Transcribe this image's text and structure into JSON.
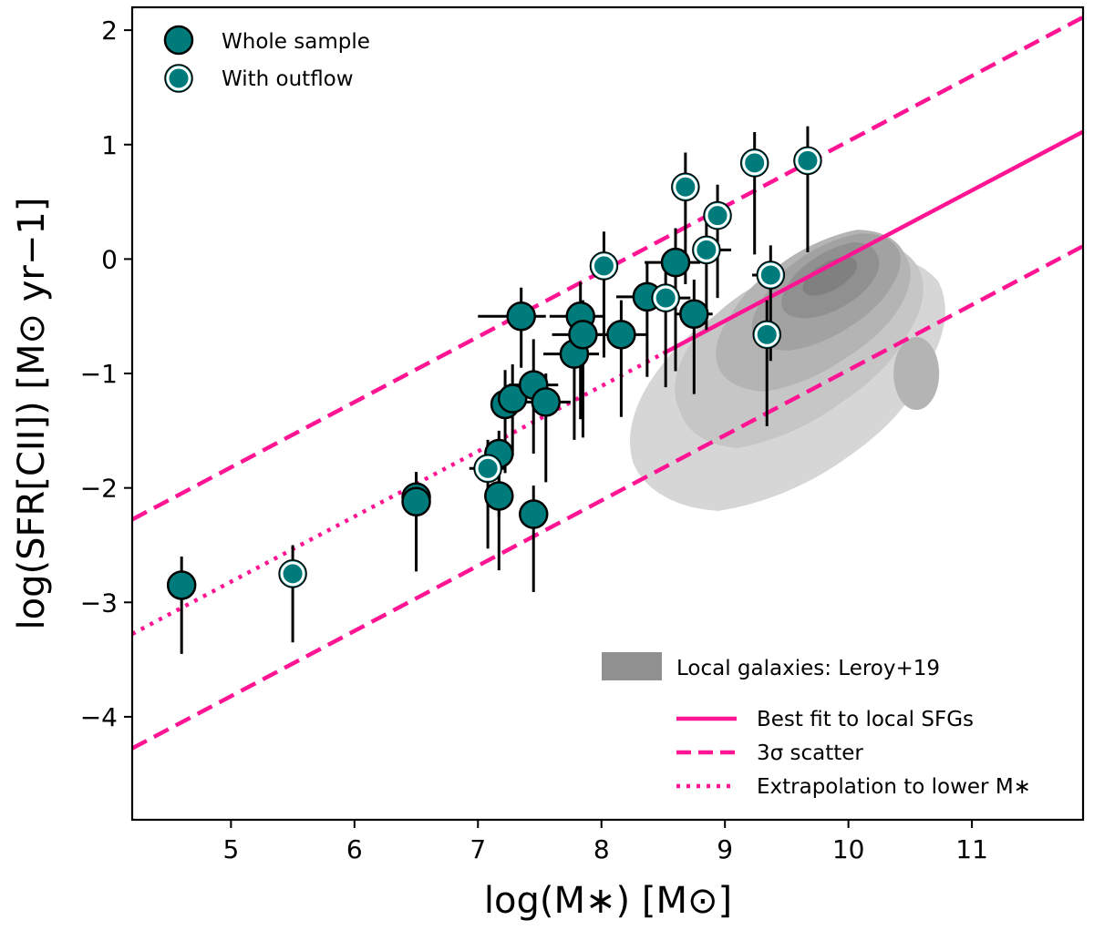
{
  "chart_data": {
    "type": "scatter",
    "xlabel": "log(M∗) [M⊙]",
    "ylabel": "log(SFR[CII]) [M⊙ yr−1]",
    "xlim": [
      4.2,
      11.9
    ],
    "ylim": [
      -4.9,
      2.2
    ],
    "xticks": [
      5,
      6,
      7,
      8,
      9,
      10,
      11
    ],
    "xtick_labels": [
      "5",
      "6",
      "7",
      "8",
      "9",
      "10",
      "11"
    ],
    "yticks": [
      2,
      1,
      0,
      -1,
      -2,
      -3,
      -4
    ],
    "ytick_labels": [
      "2",
      "1",
      "0",
      "−1",
      "−2",
      "−3",
      "−4"
    ],
    "colors": {
      "point": "#007b7b",
      "line": "#ff1493",
      "contour": [
        "#d6d6d6",
        "#c6c6c6",
        "#b4b4b4",
        "#a2a2a2",
        "#909090",
        "#808080"
      ]
    },
    "relation": {
      "name": "Best fit to local SFGs",
      "slope": 0.57,
      "intercept": -5.67,
      "fit_range": [
        8.5,
        11.9
      ],
      "extrapolation_range": [
        4.2,
        8.5
      ],
      "scatter_offset": 1.0
    },
    "series": [
      {
        "name": "Whole sample",
        "outflow": false,
        "points": [
          {
            "x": 4.6,
            "y": -2.85,
            "yerr_lo": 0.6,
            "yerr_hi": 0.25
          },
          {
            "x": 6.5,
            "y": -2.08,
            "yerr_lo": 0.65,
            "yerr_hi": 0.22
          },
          {
            "x": 6.5,
            "y": -2.12,
            "yerr_lo": 0.55,
            "yerr_hi": 0.25
          },
          {
            "x": 7.17,
            "y": -1.7,
            "yerr_lo": 0.55,
            "yerr_hi": 0.2
          },
          {
            "x": 7.17,
            "y": -2.07,
            "yerr_lo": 0.65,
            "yerr_hi": 0.22
          },
          {
            "x": 7.22,
            "y": -1.27,
            "yerr_lo": 0.6,
            "yerr_hi": 0.3
          },
          {
            "x": 7.28,
            "y": -1.22,
            "yerr_lo": 0.5,
            "yerr_hi": 0.3
          },
          {
            "x": 7.35,
            "y": -0.5,
            "xerr_lo": 0.35,
            "xerr_hi": 0.2,
            "yerr_lo": 0.45,
            "yerr_hi": 0.25
          },
          {
            "x": 7.45,
            "y": -2.23,
            "yerr_lo": 0.68,
            "yerr_hi": 0.25
          },
          {
            "x": 7.45,
            "y": -1.1,
            "xerr_lo": 0.2,
            "xerr_hi": 0.2,
            "yerr_lo": 0.6,
            "yerr_hi": 0.4
          },
          {
            "x": 7.55,
            "y": -1.25,
            "xerr_lo": 0.2,
            "xerr_hi": 0.2,
            "yerr_lo": 0.7,
            "yerr_hi": 0.25
          },
          {
            "x": 7.78,
            "y": -0.83,
            "xerr_lo": 0.25,
            "xerr_hi": 0.2,
            "yerr_lo": 0.75,
            "yerr_hi": 0.35
          },
          {
            "x": 7.83,
            "y": -0.5,
            "xerr_lo": 0.25,
            "xerr_hi": 0.2,
            "yerr_lo": 0.9,
            "yerr_hi": 0.3
          },
          {
            "x": 7.85,
            "y": -0.66,
            "xerr_lo": 0.25,
            "xerr_hi": 0.25,
            "yerr_lo": 0.9,
            "yerr_hi": 0.3
          },
          {
            "x": 8.16,
            "y": -0.66,
            "xerr_lo": 0.2,
            "xerr_hi": 0.2,
            "yerr_lo": 0.72,
            "yerr_hi": 0.3
          },
          {
            "x": 8.37,
            "y": -0.33,
            "xerr_lo": 0.25,
            "xerr_hi": 0.2,
            "yerr_lo": 0.7,
            "yerr_hi": 0.3
          },
          {
            "x": 8.6,
            "y": -0.03,
            "xerr_lo": 0.25,
            "xerr_hi": 0.2,
            "yerr_lo": 0.95,
            "yerr_hi": 0.3
          },
          {
            "x": 8.75,
            "y": -0.48,
            "xerr_lo": 0.15,
            "xerr_hi": 0.15,
            "yerr_lo": 0.7,
            "yerr_hi": 0.3
          }
        ]
      },
      {
        "name": "With outflow",
        "outflow": true,
        "points": [
          {
            "x": 5.5,
            "y": -2.75,
            "yerr_lo": 0.6,
            "yerr_hi": 0.25
          },
          {
            "x": 7.08,
            "y": -1.83,
            "xerr_lo": 0.15,
            "xerr_hi": 0.15,
            "yerr_lo": 0.7,
            "yerr_hi": 0.25
          },
          {
            "x": 8.02,
            "y": -0.06,
            "yerr_lo": 0.8,
            "yerr_hi": 0.3
          },
          {
            "x": 8.52,
            "y": -0.34,
            "xerr_lo": 0.2,
            "xerr_hi": 0.2,
            "yerr_lo": 0.78,
            "yerr_hi": 0.35
          },
          {
            "x": 8.68,
            "y": 0.63,
            "yerr_lo": 0.85,
            "yerr_hi": 0.3
          },
          {
            "x": 8.85,
            "y": 0.08,
            "xerr_lo": 0.1,
            "xerr_hi": 0.2,
            "yerr_lo": 0.7,
            "yerr_hi": 0.3
          },
          {
            "x": 8.94,
            "y": 0.38,
            "yerr_lo": 0.72,
            "yerr_hi": 0.27
          },
          {
            "x": 9.24,
            "y": 0.84,
            "yerr_lo": 0.8,
            "yerr_hi": 0.27
          },
          {
            "x": 9.34,
            "y": -0.66,
            "yerr_lo": 0.8,
            "yerr_hi": 0.3
          },
          {
            "x": 9.37,
            "y": -0.14,
            "xerr_lo": 0.15,
            "xerr_hi": 0.1,
            "yerr_lo": 0.75,
            "yerr_hi": 0.26
          },
          {
            "x": 9.67,
            "y": 0.86,
            "yerr_lo": 0.8,
            "yerr_hi": 0.3
          }
        ]
      }
    ],
    "legend_points": {
      "location": "upper-left",
      "entries": [
        "Whole sample",
        "With outflow"
      ]
    },
    "legend_lines": {
      "location": "lower-right",
      "contour_label": "Local galaxies: Leroy+19",
      "fit_label": "Best fit to local SFGs",
      "scatter_label": "3σ scatter",
      "extrapolation_label": "Extrapolation to lower M∗"
    }
  }
}
